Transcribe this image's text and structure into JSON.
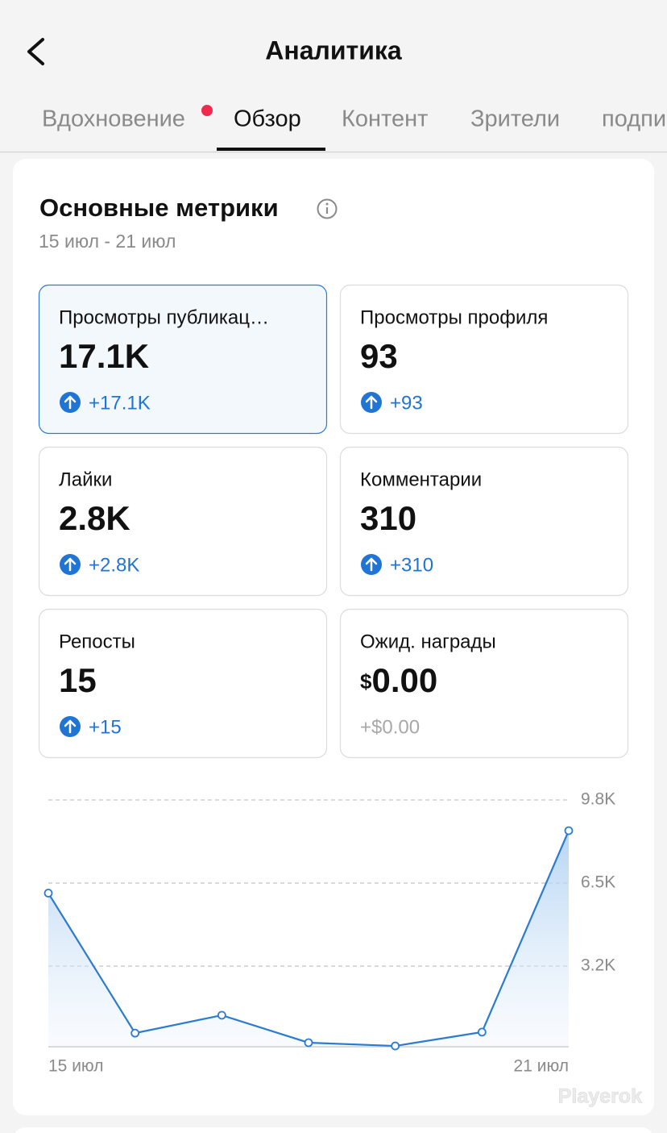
{
  "header": {
    "title": "Аналитика"
  },
  "tabs": [
    "Вдохновение",
    "Обзор",
    "Контент",
    "Зрители",
    "подпи"
  ],
  "section": {
    "title": "Основные метрики",
    "date_range": "15 июл - 21 июл"
  },
  "metrics": [
    {
      "label": "Просмотры публикац…",
      "value": "17.1K",
      "change": "+17.1K"
    },
    {
      "label": "Просмотры профиля",
      "value": "93",
      "change": "+93"
    },
    {
      "label": "Лайки",
      "value": "2.8K",
      "change": "+2.8K"
    },
    {
      "label": "Комментарии",
      "value": "310",
      "change": "+310"
    },
    {
      "label": "Репосты",
      "value": "15",
      "change": "+15"
    },
    {
      "label": "Ожид. награды",
      "currency": "$",
      "value": "0.00",
      "change": "+$0.00"
    }
  ],
  "chart_data": {
    "type": "area",
    "color": "#2a7bd1",
    "categories": [
      "15 июл",
      null,
      null,
      null,
      null,
      null,
      "21 июл"
    ],
    "values": [
      6100,
      540,
      1250,
      160,
      30,
      580,
      8580
    ],
    "ylim": [
      0,
      9800
    ],
    "yticks": [
      {
        "value": 3200,
        "label": "3.2K"
      },
      {
        "value": 6500,
        "label": "6.5K"
      },
      {
        "value": 9800,
        "label": "9.8K"
      }
    ],
    "grid": true
  },
  "watermark": "Playerok"
}
